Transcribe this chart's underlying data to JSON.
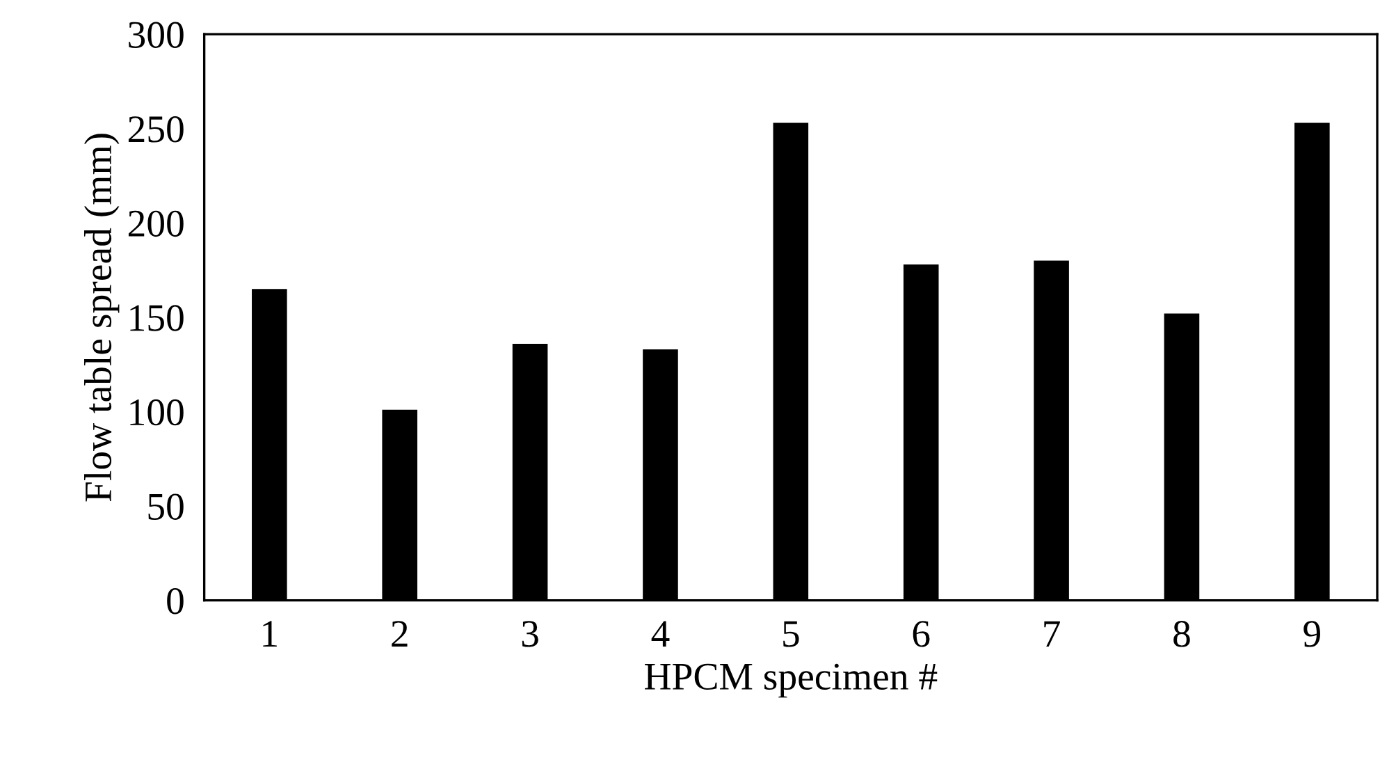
{
  "chart_data": {
    "type": "bar",
    "xlabel": "HPCM specimen #",
    "ylabel": "Flow table spread (mm)",
    "categories": [
      "1",
      "2",
      "3",
      "4",
      "5",
      "6",
      "7",
      "8",
      "9"
    ],
    "values": [
      165,
      101,
      136,
      133,
      253,
      178,
      180,
      152,
      253
    ],
    "color": "#000000",
    "ylim": [
      0,
      300
    ],
    "yticks": [
      0,
      50,
      100,
      150,
      200,
      250,
      300
    ],
    "grid": false
  }
}
